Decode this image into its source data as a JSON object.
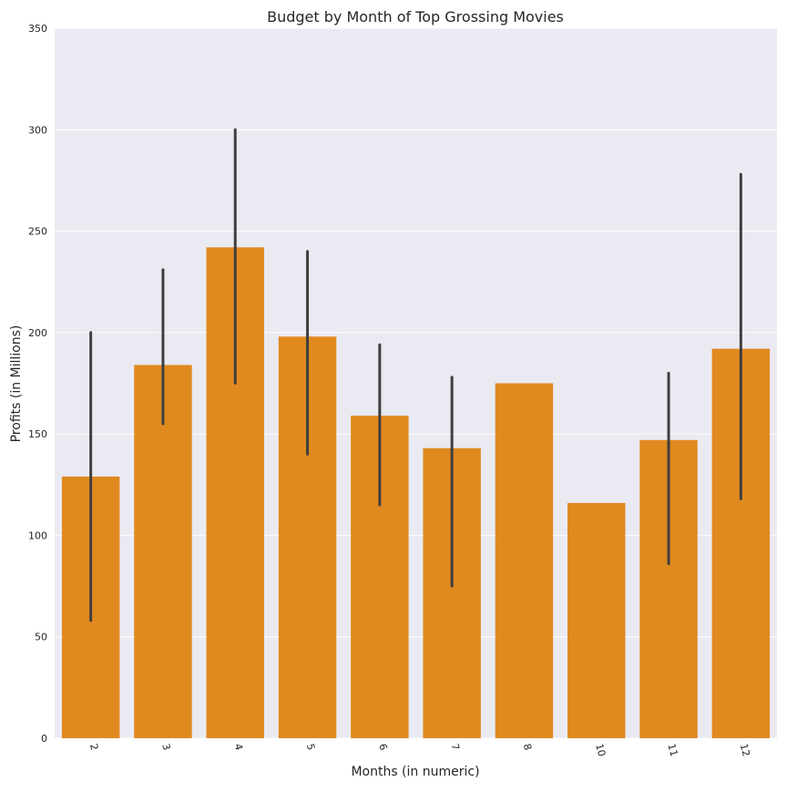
{
  "chart_data": {
    "type": "bar",
    "title": "Budget by Month of  Top Grossing Movies",
    "xlabel": "Months (in numeric)",
    "ylabel": "Profits (in Millions)",
    "categories": [
      "2",
      "3",
      "4",
      "5",
      "6",
      "7",
      "8",
      "10",
      "11",
      "12"
    ],
    "values": [
      129,
      184,
      242,
      198,
      159,
      143,
      175,
      116,
      147,
      192
    ],
    "error_bars": [
      [
        58,
        200
      ],
      [
        155,
        231
      ],
      [
        175,
        300
      ],
      [
        140,
        240
      ],
      [
        115,
        194
      ],
      [
        75,
        178
      ],
      null,
      null,
      [
        86,
        180
      ],
      [
        118,
        278
      ]
    ],
    "ylim": [
      0,
      350
    ],
    "yticks": [
      0,
      50,
      100,
      150,
      200,
      250,
      300,
      350
    ],
    "grid": true,
    "bar_color": "#e0891f",
    "errorbar_color": "#3f3f3f",
    "background_color": "#eaeaf2",
    "grid_color": "#ffffff"
  }
}
